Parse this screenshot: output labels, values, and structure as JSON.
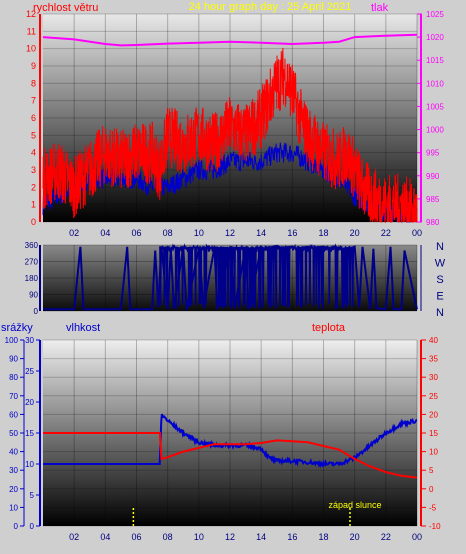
{
  "header": {
    "title": "24 hour graph day : 25 April 2021",
    "left_label": "rychlost větru",
    "right_label": "tlak"
  },
  "colors": {
    "background": "#cfcfcf",
    "wind": "#ff0000",
    "gust_base": "#0000cc",
    "pressure": "#ff00ff",
    "direction": "#00008b",
    "humidity": "#0000cc",
    "temperature": "#ff0000",
    "sunset": "#ffff00",
    "axis_left": "#ff0000",
    "axis_right": "#ff00ff"
  },
  "x_ticks": [
    "02",
    "04",
    "06",
    "08",
    "10",
    "12",
    "14",
    "16",
    "18",
    "20",
    "22",
    "00"
  ],
  "chart_data": [
    {
      "type": "line",
      "name": "wind-pressure",
      "title": "24 hour graph day : 25 April 2021",
      "ylabel_left": "rychlost větru",
      "ylabel_right": "tlak",
      "x_range": [
        0,
        24
      ],
      "y_left_range": [
        0,
        12
      ],
      "y_left_ticks": [
        "0",
        "1",
        "2",
        "3",
        "4",
        "5",
        "6",
        "7",
        "8",
        "9",
        "10",
        "11",
        "12"
      ],
      "y_right_range": [
        980,
        1025
      ],
      "y_right_ticks": [
        "980",
        "985",
        "990",
        "995",
        "1000",
        "1005",
        "1010",
        "1015",
        "1020",
        "1025"
      ],
      "pressure": {
        "x": [
          0,
          2,
          4,
          5,
          6,
          8,
          10,
          12,
          14,
          16,
          18,
          19,
          19.5,
          20,
          22,
          24
        ],
        "y": [
          1020,
          1019.5,
          1018.5,
          1018.2,
          1018.3,
          1018.6,
          1018.8,
          1019,
          1018.8,
          1018.5,
          1018.8,
          1019,
          1019.5,
          1020,
          1020.3,
          1020.5
        ]
      },
      "wind": {
        "x": [
          0,
          1,
          2,
          3,
          4,
          5,
          6,
          7,
          7.5,
          8,
          9,
          10,
          11,
          12,
          13,
          14,
          14.5,
          15,
          15.5,
          16,
          16.5,
          17,
          18,
          19,
          19.5,
          20,
          20.5,
          21,
          22,
          23,
          24
        ],
        "y": [
          2.5,
          3,
          2,
          3,
          4,
          3.5,
          4,
          4,
          3,
          5,
          4.5,
          5,
          4.5,
          5.5,
          5,
          6,
          7,
          8,
          8.5,
          7.5,
          6,
          5,
          4,
          3.5,
          4,
          3,
          2,
          1.5,
          1,
          1,
          0.5
        ]
      },
      "gust_base": {
        "x": [
          0,
          1,
          2,
          3,
          4,
          5,
          6,
          7,
          8,
          9,
          10,
          11,
          12,
          13,
          14,
          15,
          16,
          17,
          18,
          19,
          20,
          21,
          22,
          23,
          24
        ],
        "y": [
          1,
          1.5,
          2,
          2.5,
          2.5,
          2.5,
          2.5,
          2,
          2,
          2.5,
          3,
          3,
          3.5,
          3.5,
          3.5,
          4,
          4,
          3.5,
          3,
          2.5,
          1.5,
          1,
          0.5,
          0.5,
          0.5
        ]
      }
    },
    {
      "type": "line",
      "name": "wind-direction",
      "x_range": [
        0,
        24
      ],
      "y_range": [
        0,
        360
      ],
      "y_ticks": [
        "0",
        "90",
        "180",
        "270",
        "360"
      ],
      "compass": [
        "N",
        "W",
        "S",
        "E",
        "N"
      ],
      "direction": {
        "x": [
          0,
          2,
          2.4,
          2.6,
          5,
          5.4,
          5.6,
          7,
          7.2,
          7.4,
          7.6,
          8,
          8.2,
          8.4,
          9,
          9.2,
          10,
          10.3,
          11,
          11.2,
          12,
          12.3,
          13,
          13.2,
          14,
          14.2,
          15,
          15.2,
          16,
          16.3,
          17,
          17.2,
          18,
          18.3,
          19,
          19.2,
          20,
          20.3,
          20.5,
          21,
          21.2,
          21.4,
          22,
          22.3,
          22.5,
          23,
          23.2,
          24
        ],
        "y": [
          10,
          10,
          350,
          10,
          10,
          350,
          10,
          10,
          330,
          20,
          350,
          10,
          340,
          15,
          350,
          5,
          340,
          20,
          345,
          10,
          350,
          15,
          350,
          10,
          350,
          340,
          355,
          345,
          350,
          340,
          350,
          345,
          350,
          340,
          345,
          330,
          350,
          20,
          350,
          10,
          340,
          15,
          10,
          350,
          10,
          10,
          330,
          10
        ]
      }
    },
    {
      "type": "line",
      "name": "humidity-temperature",
      "ylabel_left_1": "srážky",
      "ylabel_left_2": "vlhkost",
      "ylabel_right": "teplota",
      "x_range": [
        0,
        24
      ],
      "y_rain_range": [
        0,
        100
      ],
      "y_rain_ticks": [
        "0",
        "10",
        "20",
        "30",
        "40",
        "50",
        "60",
        "70",
        "80",
        "90",
        "100"
      ],
      "y_hum_range": [
        0,
        30
      ],
      "y_hum_ticks": [
        "0",
        "5",
        "10",
        "15",
        "20",
        "25",
        "30"
      ],
      "y_temp_range": [
        -10,
        40
      ],
      "y_temp_ticks": [
        "-10",
        "-5",
        "0",
        "5",
        "10",
        "15",
        "20",
        "25",
        "30",
        "35",
        "40"
      ],
      "humidity": {
        "x": [
          0,
          1,
          2,
          3,
          4,
          5,
          6,
          7,
          7.5,
          7.6,
          8,
          9,
          10,
          11,
          12,
          13,
          14,
          14.5,
          15,
          16,
          17,
          18,
          19,
          20,
          21,
          22,
          23,
          24
        ],
        "y": [
          10,
          10,
          10,
          10,
          10,
          10,
          10,
          10,
          10,
          18,
          17,
          15,
          13.5,
          13,
          13,
          13,
          12.5,
          11,
          10.5,
          10.5,
          10.3,
          10,
          10,
          11,
          13,
          15,
          16.5,
          17
        ]
      },
      "temperature": {
        "x": [
          0,
          1,
          2,
          3,
          4,
          5,
          6,
          7,
          7.5,
          7.6,
          8,
          9,
          10,
          11,
          12,
          13,
          14,
          15,
          16,
          17,
          18,
          19,
          20,
          21,
          22,
          23,
          24
        ],
        "y": [
          15,
          15,
          15,
          15,
          15,
          15,
          15,
          15,
          15,
          8,
          8.5,
          10,
          11,
          12,
          12,
          12,
          12.3,
          13,
          12.8,
          12.5,
          11.5,
          10.5,
          8,
          6,
          4.5,
          3.5,
          3
        ]
      },
      "sunrise_x": 5.8,
      "sunset_x": 19.7,
      "sunset_label": "západ slunce"
    }
  ]
}
